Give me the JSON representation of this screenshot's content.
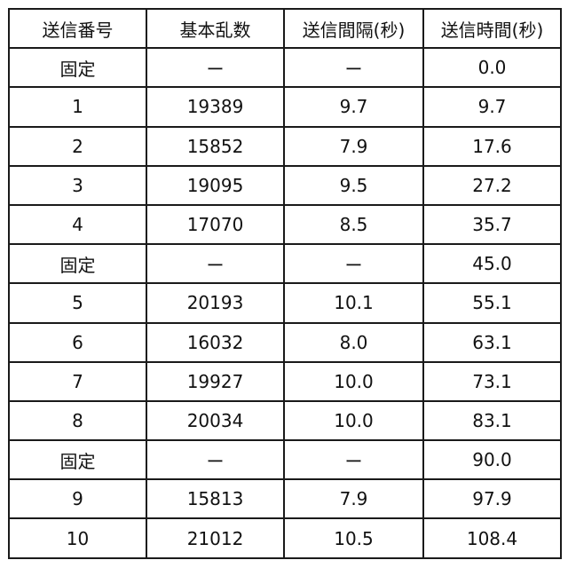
{
  "table": {
    "headers": [
      "送信番号",
      "基本乱数",
      "送信間隔(秒)",
      "送信時間(秒)"
    ],
    "rows": [
      [
        "固定",
        "ー",
        "ー",
        "0.0"
      ],
      [
        "1",
        "19389",
        "9.7",
        "9.7"
      ],
      [
        "2",
        "15852",
        "7.9",
        "17.6"
      ],
      [
        "3",
        "19095",
        "9.5",
        "27.2"
      ],
      [
        "4",
        "17070",
        "8.5",
        "35.7"
      ],
      [
        "固定",
        "ー",
        "ー",
        "45.0"
      ],
      [
        "5",
        "20193",
        "10.1",
        "55.1"
      ],
      [
        "6",
        "16032",
        "8.0",
        "63.1"
      ],
      [
        "7",
        "19927",
        "10.0",
        "73.1"
      ],
      [
        "8",
        "20034",
        "10.0",
        "83.1"
      ],
      [
        "固定",
        "ー",
        "ー",
        "90.0"
      ],
      [
        "9",
        "15813",
        "7.9",
        "97.9"
      ],
      [
        "10",
        "21012",
        "10.5",
        "108.4"
      ]
    ]
  }
}
